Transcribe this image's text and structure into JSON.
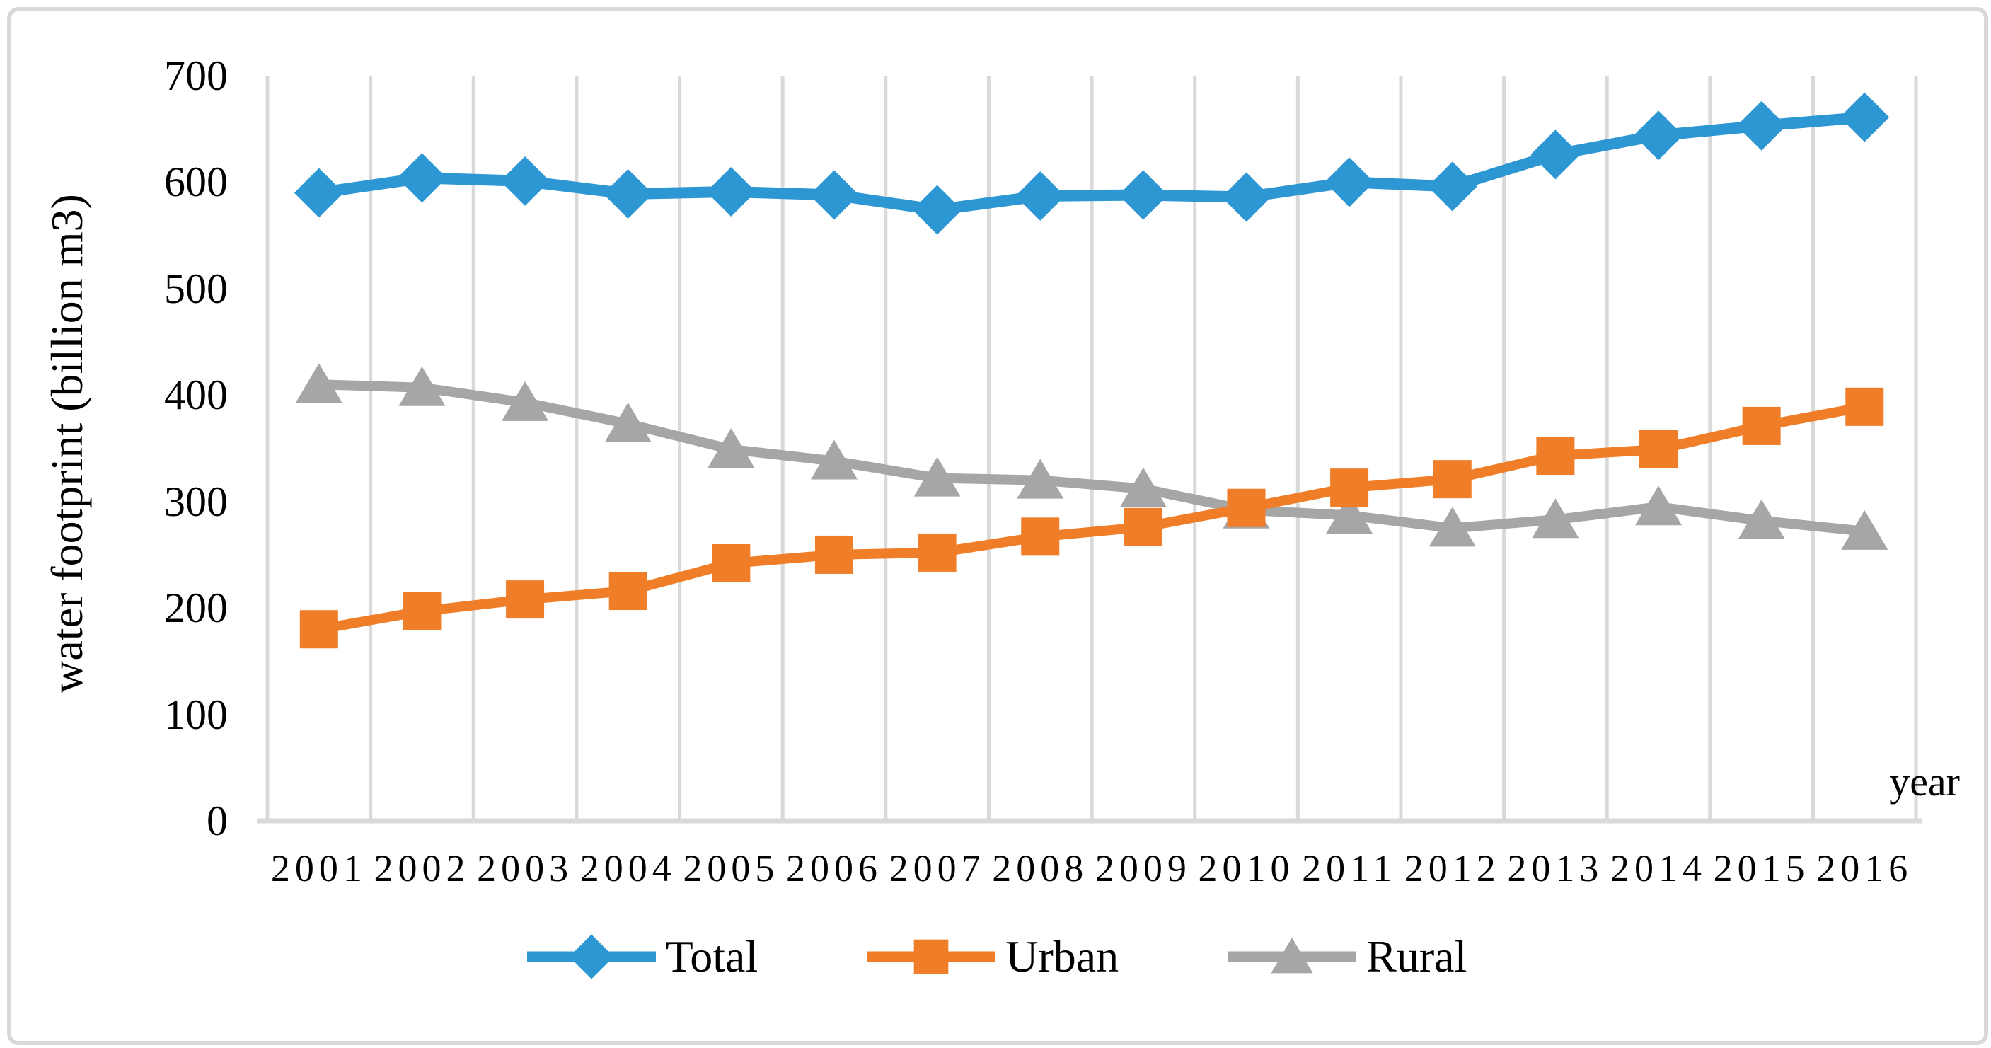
{
  "figure": {
    "border_color": "#d9d9d9",
    "background": "#ffffff"
  },
  "chart_data": {
    "type": "line",
    "title": "",
    "xlabel": "year",
    "ylabel": "water footprint (billion m3)",
    "categories": [
      "2001",
      "2002",
      "2003",
      "2004",
      "2005",
      "2006",
      "2007",
      "2008",
      "2009",
      "2010",
      "2011",
      "2012",
      "2013",
      "2014",
      "2015",
      "2016"
    ],
    "y_ticks": [
      700,
      600,
      500,
      400,
      300,
      200,
      100,
      0
    ],
    "ylim": [
      0,
      700
    ],
    "grid": "vertical-only",
    "legend_position": "bottom",
    "series": [
      {
        "name": "Total",
        "marker": "diamond",
        "color": "#2d97d3",
        "values": [
          590,
          604,
          601,
          589,
          591,
          588,
          574,
          587,
          588,
          586,
          600,
          596,
          626,
          644,
          653,
          661
        ]
      },
      {
        "name": "Urban",
        "marker": "square",
        "color": "#f07d28",
        "values": [
          180,
          197,
          208,
          216,
          242,
          250,
          252,
          267,
          276,
          294,
          313,
          321,
          343,
          349,
          371,
          389
        ]
      },
      {
        "name": "Rural",
        "marker": "triangle",
        "color": "#a6a6a6",
        "values": [
          410,
          407,
          393,
          373,
          349,
          338,
          322,
          320,
          312,
          292,
          287,
          275,
          283,
          295,
          282,
          272
        ]
      }
    ],
    "colors": {
      "gridline": "#d9d9d9",
      "axis_line": "#d9d9d9",
      "text": "#000000"
    }
  }
}
